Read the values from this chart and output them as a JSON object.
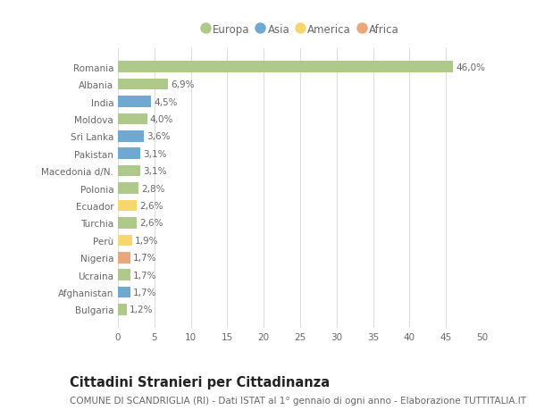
{
  "countries": [
    "Romania",
    "Albania",
    "India",
    "Moldova",
    "Sri Lanka",
    "Pakistan",
    "Macedonia d/N.",
    "Polonia",
    "Ecuador",
    "Turchia",
    "Perù",
    "Nigeria",
    "Ucraina",
    "Afghanistan",
    "Bulgaria"
  ],
  "values": [
    46.0,
    6.9,
    4.5,
    4.0,
    3.6,
    3.1,
    3.1,
    2.8,
    2.6,
    2.6,
    1.9,
    1.7,
    1.7,
    1.7,
    1.2
  ],
  "labels": [
    "46,0%",
    "6,9%",
    "4,5%",
    "4,0%",
    "3,6%",
    "3,1%",
    "3,1%",
    "2,8%",
    "2,6%",
    "2,6%",
    "1,9%",
    "1,7%",
    "1,7%",
    "1,7%",
    "1,2%"
  ],
  "continents": [
    "Europa",
    "Europa",
    "Asia",
    "Europa",
    "Asia",
    "Asia",
    "Europa",
    "Europa",
    "America",
    "Europa",
    "America",
    "Africa",
    "Europa",
    "Asia",
    "Europa"
  ],
  "continent_colors": {
    "Europa": "#aec98a",
    "Asia": "#6fa8d0",
    "America": "#f5d76e",
    "Africa": "#e8a87c"
  },
  "legend_order": [
    "Europa",
    "Asia",
    "America",
    "Africa"
  ],
  "title": "Cittadini Stranieri per Cittadinanza",
  "subtitle": "COMUNE DI SCANDRIGLIA (RI) - Dati ISTAT al 1° gennaio di ogni anno - Elaborazione TUTTITALIA.IT",
  "xlim": [
    0,
    50
  ],
  "xticks": [
    0,
    5,
    10,
    15,
    20,
    25,
    30,
    35,
    40,
    45,
    50
  ],
  "background_color": "#ffffff",
  "grid_color": "#dddddd",
  "bar_height": 0.65,
  "label_fontsize": 7.5,
  "tick_fontsize": 7.5,
  "legend_fontsize": 8.5,
  "title_fontsize": 10.5,
  "subtitle_fontsize": 7.5
}
